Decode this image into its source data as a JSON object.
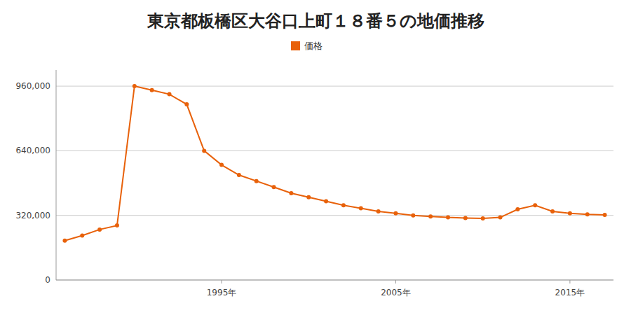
{
  "chart_data": {
    "type": "line",
    "title": "東京都板橋区大谷口上町１８番５の地価推移",
    "x": [
      1986,
      1987,
      1988,
      1989,
      1990,
      1991,
      1992,
      1993,
      1994,
      1995,
      1996,
      1997,
      1998,
      1999,
      2000,
      2001,
      2002,
      2003,
      2004,
      2005,
      2006,
      2007,
      2008,
      2009,
      2010,
      2011,
      2012,
      2013,
      2014,
      2015,
      2016,
      2017
    ],
    "series": [
      {
        "name": "価格",
        "color": "#e8610a",
        "marker": "circle",
        "line_style": "solid",
        "values": [
          195000,
          220000,
          250000,
          270000,
          960000,
          940000,
          920000,
          870000,
          640000,
          570000,
          520000,
          490000,
          460000,
          430000,
          410000,
          390000,
          370000,
          355000,
          340000,
          330000,
          320000,
          315000,
          310000,
          307000,
          305000,
          310000,
          350000,
          370000,
          340000,
          330000,
          325000,
          322000
        ]
      }
    ],
    "xlim": [
      1985.5,
      2017.5
    ],
    "xticks": [
      {
        "value": 1995,
        "label": "1995年"
      },
      {
        "value": 2005,
        "label": "2005年"
      },
      {
        "value": 2015,
        "label": "2015年"
      }
    ],
    "ylim": [
      0,
      1040000
    ],
    "yticks": [
      0,
      {
        "value": 320000,
        "label": "320,000"
      },
      {
        "value": 640000,
        "label": "640,000"
      },
      {
        "value": 960000,
        "label": "960,000"
      }
    ],
    "grid": true,
    "legend": "top"
  }
}
